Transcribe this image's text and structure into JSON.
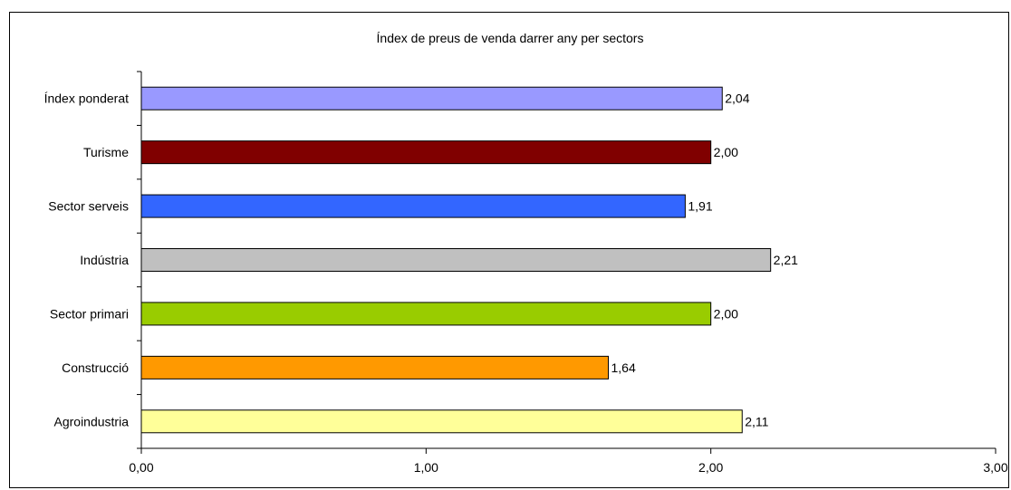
{
  "chart_data": {
    "type": "bar",
    "orientation": "horizontal",
    "title": "Índex de preus de venda darrer any per sectors",
    "categories": [
      "Índex ponderat",
      "Turisme",
      "Sector serveis",
      "Indústria",
      "Sector primari",
      "Construcció",
      "Agroindustria"
    ],
    "values": [
      2.04,
      2.0,
      1.91,
      2.21,
      2.0,
      1.64,
      2.11
    ],
    "data_labels": [
      "2,04",
      "2,00",
      "1,91",
      "2,21",
      "2,00",
      "1,64",
      "2,11"
    ],
    "colors": [
      "#9999ff",
      "#800000",
      "#3366ff",
      "#c0c0c0",
      "#99cc00",
      "#ff9900",
      "#ffff99"
    ],
    "xlim": [
      0,
      3
    ],
    "xticks": [
      0,
      1,
      2,
      3
    ],
    "xtick_labels": [
      "0,00",
      "1,00",
      "2,00",
      "3,00"
    ],
    "grid": false,
    "legend": "none"
  }
}
